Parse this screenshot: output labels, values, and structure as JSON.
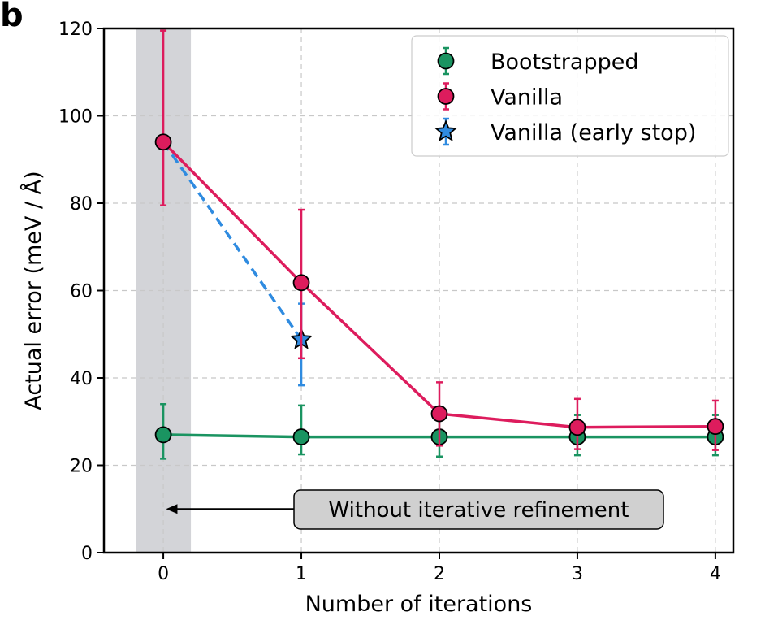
{
  "panel_label": "b",
  "colors": {
    "bootstrapped": "#1a9461",
    "vanilla": "#dd1c5d",
    "early_stop": "#2f8be0",
    "shade": "#d3d4d8",
    "annotation_box": "#d0d0d0"
  },
  "chart_data": {
    "type": "line",
    "title": "",
    "xlabel": "Number of iterations",
    "ylabel": "Actual error (meV / Å)",
    "xlim": [
      -0.43,
      4.13
    ],
    "ylim": [
      0,
      120
    ],
    "xticks": [
      0,
      1,
      2,
      3,
      4
    ],
    "yticks": [
      0,
      20,
      40,
      60,
      80,
      100,
      120
    ],
    "grid": true,
    "legend_position": "top-right",
    "shaded_region": {
      "x": [
        -0.2,
        0.2
      ]
    },
    "series": [
      {
        "name": "Bootstrapped",
        "marker": "circle",
        "line_style": "solid",
        "x": [
          0,
          1,
          2,
          3,
          4
        ],
        "y": [
          27,
          26.5,
          26.5,
          26.5,
          26.5
        ],
        "err_low": [
          21.5,
          22.5,
          22,
          22.3,
          22.3
        ],
        "err_high": [
          34,
          33.7,
          31,
          31.5,
          31.5
        ]
      },
      {
        "name": "Vanilla",
        "marker": "circle",
        "line_style": "solid",
        "x": [
          0,
          1,
          2,
          3,
          4
        ],
        "y": [
          94,
          61.8,
          31.8,
          28.7,
          28.9
        ],
        "err_low": [
          79.5,
          44.5,
          24.5,
          23.7,
          23.5
        ],
        "err_high": [
          119.5,
          78.5,
          39,
          35.2,
          34.8
        ]
      },
      {
        "name": "Vanilla (early stop)",
        "marker": "star",
        "line_style": "dashed",
        "x": [
          0,
          1
        ],
        "y": [
          94,
          48.8
        ],
        "err_low": [
          null,
          38.3
        ],
        "err_high": [
          null,
          57
        ]
      }
    ],
    "annotation": {
      "text": "Without iterative refinement",
      "arrow_to": [
        0.02,
        10
      ]
    }
  }
}
